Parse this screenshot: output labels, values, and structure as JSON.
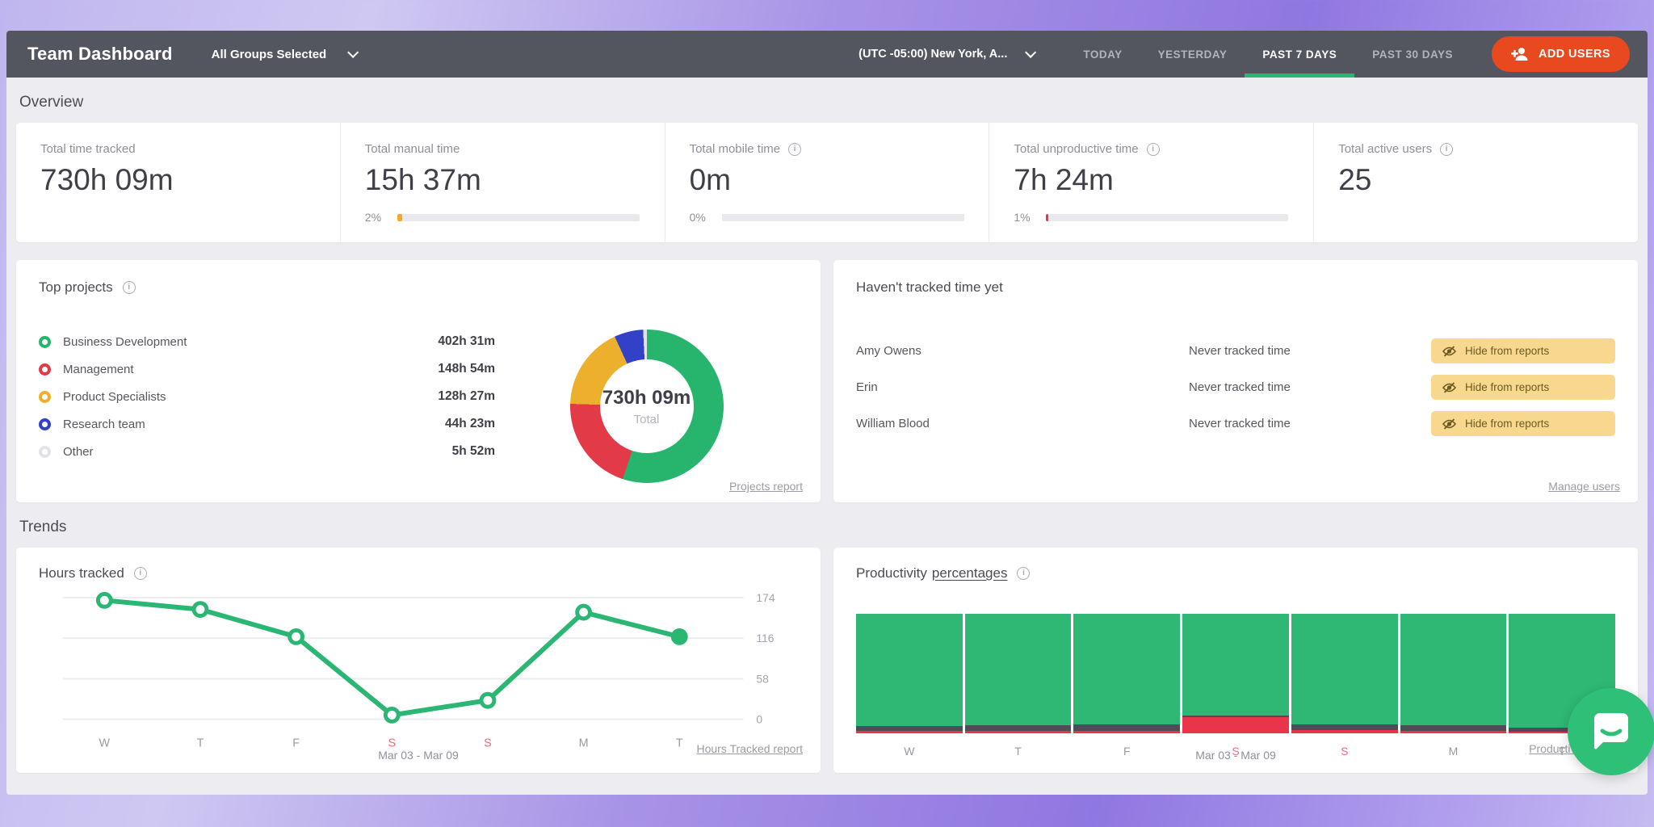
{
  "topbar": {
    "title": "Team Dashboard",
    "groups_selector": {
      "label": "All Groups Selected"
    },
    "timezone": {
      "label": "(UTC -05:00) New York, A..."
    },
    "range_tabs": [
      {
        "label": "TODAY",
        "active": false
      },
      {
        "label": "YESTERDAY",
        "active": false
      },
      {
        "label": "PAST 7 DAYS",
        "active": true
      },
      {
        "label": "PAST 30 DAYS",
        "active": false
      }
    ],
    "add_users_label": "ADD USERS"
  },
  "overview": {
    "heading": "Overview",
    "cards": [
      {
        "label": "Total time tracked",
        "value": "730h 09m",
        "info": false,
        "progress": null
      },
      {
        "label": "Total manual time",
        "value": "15h 37m",
        "info": false,
        "progress": {
          "percent_label": "2%",
          "percent": 2,
          "color": "#f7a823"
        }
      },
      {
        "label": "Total mobile time",
        "value": "0m",
        "info": true,
        "progress": {
          "percent_label": "0%",
          "percent": 0,
          "color": "#f7a823"
        }
      },
      {
        "label": "Total unproductive time",
        "value": "7h 24m",
        "info": true,
        "progress": {
          "percent_label": "1%",
          "percent": 1,
          "color": "#e8354a"
        }
      },
      {
        "label": "Total active users",
        "value": "25",
        "info": true,
        "progress": null
      }
    ]
  },
  "top_projects": {
    "title": "Top projects",
    "rows": [
      {
        "name": "Business Development",
        "time": "402h 31m",
        "color": "#27b56e"
      },
      {
        "name": "Management",
        "time": "148h 54m",
        "color": "#e23b47"
      },
      {
        "name": "Product Specialists",
        "time": "128h 27m",
        "color": "#edb02d"
      },
      {
        "name": "Research team",
        "time": "44h 23m",
        "color": "#3340c8"
      },
      {
        "name": "Other",
        "time": "5h 52m",
        "color": "#e2e2e8"
      }
    ],
    "donut_center": {
      "value": "730h 09m",
      "label": "Total"
    },
    "report_link": "Projects report"
  },
  "untracked": {
    "title": "Haven't tracked time yet",
    "rows": [
      {
        "name": "Amy Owens",
        "status": "Never tracked time",
        "action": "Hide from reports"
      },
      {
        "name": "Erin",
        "status": "Never tracked time",
        "action": "Hide from reports"
      },
      {
        "name": "William Blood",
        "status": "Never tracked time",
        "action": "Hide from reports"
      }
    ],
    "manage_link": "Manage users"
  },
  "trends": {
    "heading": "Trends",
    "hours_card": {
      "title": "Hours tracked",
      "date_range": "Mar 03 - Mar 09",
      "report_link": "Hours Tracked report"
    },
    "productivity_card": {
      "title_prefix": "Productivity",
      "title_underlined": "percentages",
      "date_range": "Mar 03 - Mar 09",
      "report_link": "Productivity report"
    }
  },
  "chart_data": [
    {
      "type": "pie",
      "subtype": "donut",
      "title": "Top projects",
      "labels": [
        "Business Development",
        "Management",
        "Product Specialists",
        "Research team",
        "Other"
      ],
      "values_text": [
        "402h 31m",
        "148h 54m",
        "128h 27m",
        "44h 23m",
        "5h 52m"
      ],
      "percents": [
        55.1,
        20.4,
        17.6,
        6.1,
        0.8
      ],
      "colors": [
        "#27b56e",
        "#e23b47",
        "#edb02d",
        "#3340c8",
        "#e2e2e8"
      ],
      "center": {
        "value": "730h 09m",
        "label": "Total"
      }
    },
    {
      "type": "line",
      "title": "Hours tracked",
      "categories": [
        "W",
        "T",
        "F",
        "S",
        "S",
        "M",
        "T"
      ],
      "weekend_indices": [
        3,
        4
      ],
      "values": [
        170,
        157,
        118,
        6,
        27,
        153,
        118
      ],
      "yticks": [
        174,
        116,
        58,
        0
      ],
      "ylim": [
        0,
        174
      ],
      "line_color": "#2bb673",
      "grid": true,
      "date_range": "Mar 03 - Mar 09"
    },
    {
      "type": "bar",
      "subtype": "stacked-percent",
      "title": "Productivity percentages",
      "categories": [
        "W",
        "T",
        "F",
        "S",
        "S",
        "M",
        "T"
      ],
      "weekend_indices": [
        3,
        4
      ],
      "series": [
        {
          "name": "productive",
          "color": "#2eb873",
          "values": [
            94,
            93.5,
            92.5,
            85,
            92.5,
            93.5,
            95.5
          ]
        },
        {
          "name": "neutral",
          "color": "#4d4d5a",
          "values": [
            4,
            4.5,
            5.5,
            1.5,
            4.5,
            4.5,
            3
          ]
        },
        {
          "name": "unproductive",
          "color": "#e8354a",
          "values": [
            2,
            2,
            2,
            13.5,
            3,
            2,
            1.5
          ]
        }
      ],
      "ylim": [
        0,
        100
      ],
      "date_range": "Mar 03 - Mar 09"
    }
  ],
  "colors": {
    "topbar_bg": "#54565f",
    "page_bg": "#ededf1",
    "accent_green": "#2bb673",
    "add_users_bg": "#e8491f",
    "badge_bg": "#f8d88e",
    "unproductive_red": "#e8354a",
    "manual_orange": "#f7a823"
  }
}
